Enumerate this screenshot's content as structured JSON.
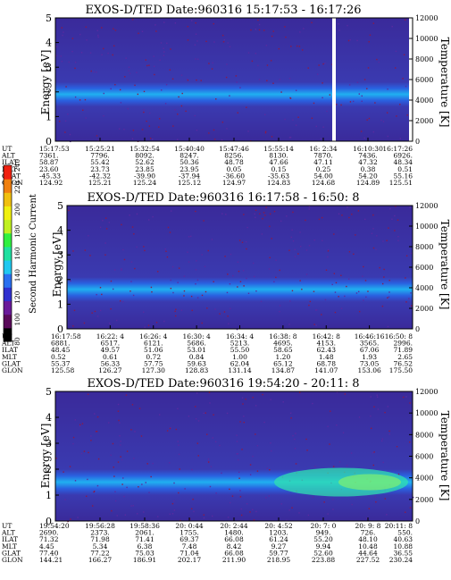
{
  "chart_data": [
    {
      "type": "heatmap",
      "title": "EXOS-D/TED   Date:960316  15:17:53 - 16:17:26",
      "ylabel": "Energy [eV]",
      "y2label": "Temperature [K]",
      "ylim": [
        0,
        5
      ],
      "y2lim": [
        0,
        12000
      ],
      "yticks": [
        "0",
        "1",
        "2",
        "3",
        "4",
        "5"
      ],
      "y2ticks": [
        "0",
        "2000",
        "4000",
        "6000",
        "8000",
        "10000",
        "12000"
      ],
      "band_center_ev": 1.9,
      "band_intensity": 0.55,
      "data_gaps": [
        0.78,
        0.995
      ],
      "row_labels": [
        "UT",
        "ALT",
        "ILAT",
        "MLT",
        "GLAT",
        "GLON"
      ],
      "columns": [
        [
          "15:17:53",
          "7361.",
          "58.87",
          "23.60",
          "-45.33",
          "124.92"
        ],
        [
          "15:25:21",
          "7796.",
          "55.42",
          "23.73",
          "-42.32",
          "125.21"
        ],
        [
          "15:32:54",
          "8092.",
          "52.62",
          "23.85",
          "-39.90",
          "125.24"
        ],
        [
          "15:40:40",
          "8247.",
          "50.36",
          "23.95",
          "-37.94",
          "125.12"
        ],
        [
          "15:47:46",
          "8256.",
          "48.78",
          "0.05",
          "-36.60",
          "124.97"
        ],
        [
          "15:55:14",
          "8130.",
          "47.66",
          "0.15",
          "-35.63",
          "124.83"
        ],
        [
          "16: 2:34",
          "7870.",
          "47.11",
          "0.25",
          "54.00",
          "124.68"
        ],
        [
          "16:10:30",
          "7436.",
          "47.32",
          "0.38",
          "54.20",
          "124.89"
        ],
        [
          "16:17:26",
          "6926.",
          "48.34",
          "0.51",
          "55.16",
          "125.51"
        ]
      ]
    },
    {
      "type": "heatmap",
      "title": "EXOS-D/TED   Date:960316  16:17:58 - 16:50: 8",
      "ylabel": "Energy [eV]",
      "y2label": "Temperature [K]",
      "ylim": [
        0,
        5
      ],
      "y2lim": [
        0,
        12000
      ],
      "yticks": [
        "0",
        "1",
        "2",
        "3",
        "4",
        "5"
      ],
      "y2ticks": [
        "0",
        "2000",
        "4000",
        "6000",
        "8000",
        "10000",
        "12000"
      ],
      "band_center_ev": 1.6,
      "band_intensity": 0.6,
      "row_labels": [
        "UT",
        "ALT",
        "ILAT",
        "MLT",
        "GLAT",
        "GLON"
      ],
      "columns": [
        [
          "16:17:58",
          "6881.",
          "48.45",
          "0.52",
          "55.37",
          "125.58"
        ],
        [
          "16:22: 4",
          "6517.",
          "49.57",
          "0.61",
          "56.33",
          "126.27"
        ],
        [
          "16:26: 4",
          "6121.",
          "51.06",
          "0.72",
          "57.75",
          "127.30"
        ],
        [
          "16:30: 4",
          "5686.",
          "53.01",
          "0.84",
          "59.63",
          "128.83"
        ],
        [
          "16:34: 4",
          "5213.",
          "55.50",
          "1.00",
          "62.04",
          "131.14"
        ],
        [
          "16:38: 8",
          "4695.",
          "58.65",
          "1.20",
          "65.12",
          "134.87"
        ],
        [
          "16:42: 8",
          "4153.",
          "62.43",
          "1.48",
          "68.78",
          "141.07"
        ],
        [
          "16:46:16",
          "3565.",
          "67.06",
          "1.93",
          "73.05",
          "153.06"
        ],
        [
          "16:50: 8",
          "2996.",
          "71.89",
          "2.65",
          "76.52",
          "175.50"
        ]
      ]
    },
    {
      "type": "heatmap",
      "title": "EXOS-D/TED   Date:960316  19:54:20 - 20:11: 8",
      "ylabel": "Energy [eV]",
      "y2label": "Temperature [K]",
      "ylim": [
        0,
        5
      ],
      "y2lim": [
        0,
        12000
      ],
      "yticks": [
        "0",
        "1",
        "2",
        "3",
        "4",
        "5"
      ],
      "y2ticks": [
        "0",
        "2000",
        "4000",
        "6000",
        "8000",
        "10000",
        "12000"
      ],
      "band_center_ev": 1.5,
      "band_intensity": 0.75,
      "row_labels": [
        "UT",
        "ALT",
        "ILAT",
        "MLT",
        "GLAT",
        "GLON"
      ],
      "columns": [
        [
          "19:54:20",
          "2690.",
          "71.32",
          "4.45",
          "77.40",
          "144.21"
        ],
        [
          "19:56:28",
          "2373.",
          "71.98",
          "5.34",
          "77.22",
          "166.27"
        ],
        [
          "19:58:36",
          "2061.",
          "71.41",
          "6.38",
          "75.03",
          "186.91"
        ],
        [
          "20: 0:44",
          "1755.",
          "69.37",
          "7.48",
          "71.04",
          "202.17"
        ],
        [
          "20: 2:44",
          "1480.",
          "66.08",
          "8.42",
          "66.08",
          "211.90"
        ],
        [
          "20: 4:52",
          "1203.",
          "61.24",
          "9.27",
          "59.77",
          "218.95"
        ],
        [
          "20: 7: 0",
          "949.",
          "55.20",
          "9.94",
          "52.60",
          "223.88"
        ],
        [
          "20: 9: 8",
          "726.",
          "48.10",
          "10.48",
          "44.64",
          "227.52"
        ],
        [
          "20:11: 8",
          "550.",
          "40.63",
          "10.88",
          "36.55",
          "230.24"
        ]
      ]
    }
  ],
  "colorbar": {
    "label": "Second Harmonic Current",
    "ticks": [
      "80",
      "100",
      "120",
      "140",
      "160",
      "180",
      "200",
      "220",
      "240"
    ],
    "colors": [
      "#000000",
      "#5a0a5a",
      "#6a1a9a",
      "#3030d0",
      "#2a70f0",
      "#20c8f0",
      "#20e0a0",
      "#30f040",
      "#c0f020",
      "#f0f010",
      "#f0c010",
      "#f08010",
      "#f02010"
    ]
  }
}
